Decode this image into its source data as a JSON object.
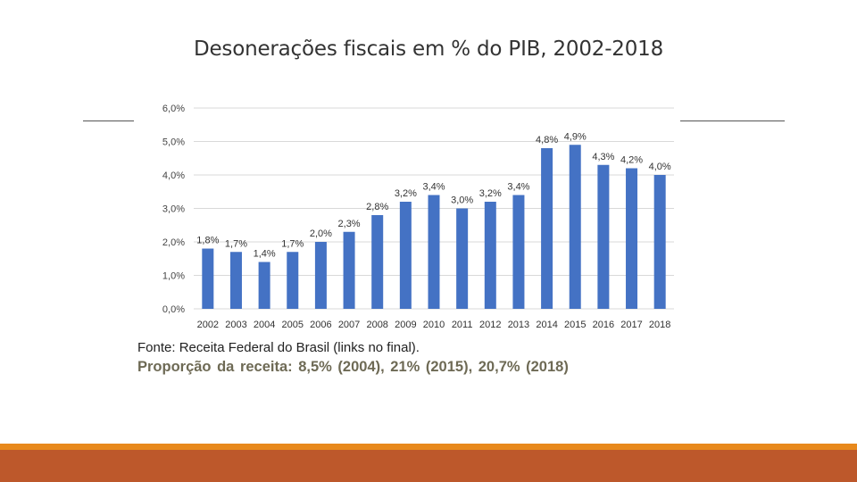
{
  "slide": {
    "title": "Desonerações fiscais em % do PIB, 2002-2018",
    "source": "Fonte: Receita Federal do Brasil (links no final).",
    "proportion": "Proporção da receita: 8,5% (2004), 21% (2015), 20,7% (2018)"
  },
  "colors": {
    "bar": "#4472c4",
    "footer_top": "#e8891c",
    "footer_bottom": "#bd582b"
  },
  "chart_data": {
    "type": "bar",
    "title": "",
    "xlabel": "",
    "ylabel": "",
    "ylim": [
      0,
      6
    ],
    "yticks": [
      {
        "value": 0,
        "label": "0,0%"
      },
      {
        "value": 1,
        "label": "1,0%"
      },
      {
        "value": 2,
        "label": "2,0%"
      },
      {
        "value": 3,
        "label": "3,0%"
      },
      {
        "value": 4,
        "label": "4,0%"
      },
      {
        "value": 5,
        "label": "5,0%"
      },
      {
        "value": 6,
        "label": "6,0%"
      }
    ],
    "grid": true,
    "categories": [
      "2002",
      "2003",
      "2004",
      "2005",
      "2006",
      "2007",
      "2008",
      "2009",
      "2010",
      "2011",
      "2012",
      "2013",
      "2014",
      "2015",
      "2016",
      "2017",
      "2018"
    ],
    "values": [
      1.8,
      1.7,
      1.4,
      1.7,
      2.0,
      2.3,
      2.8,
      3.2,
      3.4,
      3.0,
      3.2,
      3.4,
      4.8,
      4.9,
      4.3,
      4.2,
      4.0
    ],
    "labels": [
      "1,8%",
      "1,7%",
      "1,4%",
      "1,7%",
      "2,0%",
      "2,3%",
      "2,8%",
      "3,2%",
      "3,4%",
      "3,0%",
      "3,2%",
      "3,4%",
      "4,8%",
      "4,9%",
      "4,3%",
      "4,2%",
      "4,0%"
    ]
  }
}
